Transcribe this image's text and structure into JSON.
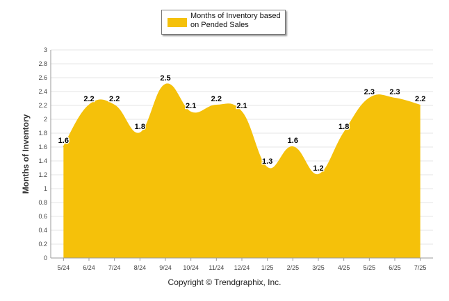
{
  "chart_data": {
    "type": "area",
    "categories": [
      "5/24",
      "6/24",
      "7/24",
      "8/24",
      "9/24",
      "10/24",
      "11/24",
      "12/24",
      "1/25",
      "2/25",
      "3/25",
      "4/25",
      "5/25",
      "6/25",
      "7/25"
    ],
    "series": [
      {
        "name": "Months of Inventory based on Pended Sales",
        "values": [
          1.6,
          2.2,
          2.2,
          1.8,
          2.5,
          2.1,
          2.2,
          2.1,
          1.3,
          1.6,
          1.2,
          1.8,
          2.3,
          2.3,
          2.2
        ],
        "data_labels": [
          "1.6",
          "2.2",
          "2.2",
          "1.8",
          "2.5",
          "2.1",
          "2.2",
          "2.1",
          "1.3",
          "1.6",
          "1.2",
          "1.8",
          "2.3",
          "2.3",
          "2.2"
        ]
      }
    ],
    "ylabel": "Months of Inventory",
    "ylim": [
      0,
      3
    ],
    "yticks": [
      "0",
      "0.2",
      "0.4",
      "0.6",
      "0.8",
      "1",
      "1.2",
      "1.4",
      "1.6",
      "1.8",
      "2",
      "2.2",
      "2.4",
      "2.6",
      "2.8",
      "3"
    ],
    "grid": true,
    "legend_position": "top-center",
    "color": "#f5c10a"
  },
  "legend": {
    "label": "Months of Inventory based on Pended Sales"
  },
  "footer": {
    "text": "Copyright © Trendgraphix, Inc."
  }
}
